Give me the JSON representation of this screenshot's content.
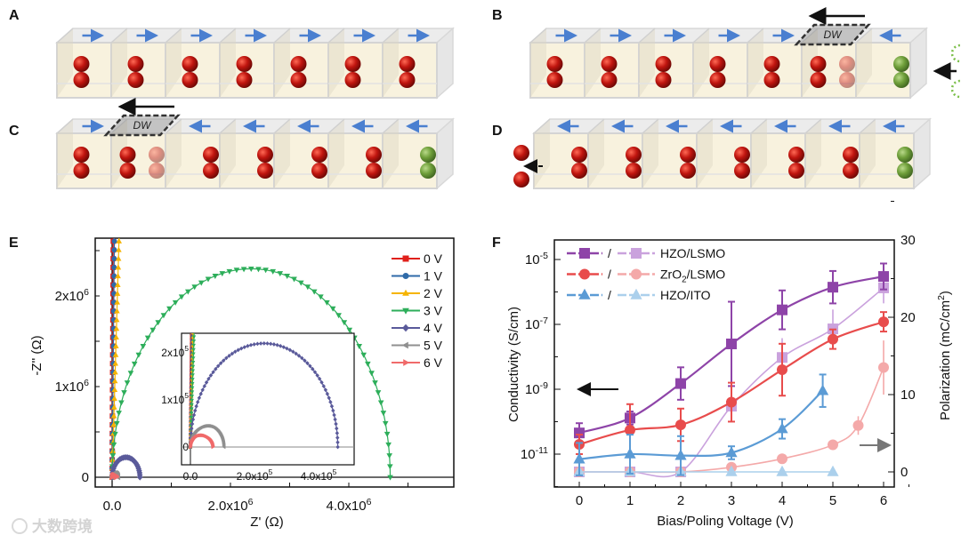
{
  "panels": {
    "a": "A",
    "b": "B",
    "c": "C",
    "d": "D",
    "e": "E",
    "f": "F"
  },
  "diagram": {
    "dw_label": "DW",
    "rows": [
      {
        "id": "A",
        "arrows": [
          "R",
          "R",
          "R",
          "R",
          "R",
          "R",
          "R"
        ],
        "spheres": [
          "cR",
          "cR",
          "cR",
          "cR",
          "cR",
          "cR",
          "cR"
        ]
      },
      {
        "id": "B",
        "arrows": [
          "R",
          "R",
          "R",
          "R",
          "R",
          "DW",
          "L"
        ],
        "spheres": [
          "cR",
          "cR",
          "cR",
          "cR",
          "cR",
          "lR+rF",
          "rG"
        ],
        "extra": "vacancy-in"
      },
      {
        "id": "C",
        "arrows": [
          "R",
          "DW",
          "L",
          "L",
          "L",
          "L",
          "L"
        ],
        "spheres": [
          "cR",
          "lR+rF",
          "rR",
          "rR",
          "rR",
          "rR",
          "rG"
        ]
      },
      {
        "id": "D",
        "arrows": [
          "L",
          "L",
          "L",
          "L",
          "L",
          "L",
          "L"
        ],
        "spheres": [
          "rR",
          "rR",
          "rR",
          "rR",
          "rR",
          "rR",
          "rG"
        ],
        "extra": "ion-out"
      }
    ],
    "colors": {
      "red": "#c0150f",
      "green": "#6f9f3a",
      "arrow": "#4a7fd0"
    }
  },
  "chart_data": [
    {
      "id": "E",
      "type": "scatter",
      "xlabel": "Z' (Ω)",
      "ylabel": "-Z'' (Ω)",
      "xlim": [
        -280000.0,
        5800000.0
      ],
      "ylim": [
        -100000.0,
        2600000.0
      ],
      "xticks": [
        {
          "v": 0,
          "base": "0.0",
          "exp": ""
        },
        {
          "v": 2000000.0,
          "base": "2.0x10",
          "exp": "6"
        },
        {
          "v": 4000000.0,
          "base": "4.0x10",
          "exp": "6"
        }
      ],
      "yticks": [
        {
          "v": 0,
          "base": "0",
          "exp": ""
        },
        {
          "v": 1000000.0,
          "base": "1x10",
          "exp": "6"
        },
        {
          "v": 2000000.0,
          "base": "2x10",
          "exp": "6"
        }
      ],
      "series": [
        {
          "name": "0 V",
          "color": "#e0201b",
          "marker": "square",
          "kind": "line",
          "x_top": 20000.0,
          "zmax": 0,
          "peak": 0,
          "inset_x_top": 5000.0
        },
        {
          "name": "1 V",
          "color": "#2f6aa8",
          "marker": "circle",
          "kind": "line",
          "x_top": 40000.0,
          "zmax": 0,
          "peak": 0,
          "inset_x_top": 7000.0
        },
        {
          "name": "2 V",
          "color": "#f5b400",
          "marker": "tri-up",
          "kind": "line",
          "x_top": 120000.0,
          "zmax": 0,
          "peak": 0,
          "inset_x_top": 9000.0
        },
        {
          "name": "3 V",
          "color": "#2dae5a",
          "marker": "tri-down",
          "kind": "arc",
          "zmax": 4700000.0,
          "peak": 2300000.0,
          "inset_x_top": 13000.0
        },
        {
          "name": "4 V",
          "color": "#5a5a9a",
          "marker": "diamond",
          "kind": "arc",
          "zmax": 470000.0,
          "peak": 220000.0,
          "inset_zmax": 460000.0,
          "inset_peak": 220000.0
        },
        {
          "name": "5 V",
          "color": "#8f8f8f",
          "marker": "tri-left",
          "kind": "arc",
          "zmax": 100000.0,
          "peak": 45000.0,
          "inset_zmax": 105000.0,
          "inset_peak": 45000.0
        },
        {
          "name": "6 V",
          "color": "#f06a6a",
          "marker": "tri-right",
          "kind": "arc",
          "zmax": 70000.0,
          "peak": 25000.0,
          "inset_zmax": 70000.0,
          "inset_peak": 25000.0
        }
      ],
      "inset": {
        "xticks": [
          {
            "v": 0,
            "base": "0.0",
            "exp": ""
          },
          {
            "v": 200000.0,
            "base": "2.0x10",
            "exp": "5"
          },
          {
            "v": 400000.0,
            "base": "4.0x10",
            "exp": "5"
          }
        ],
        "yticks": [
          {
            "v": 0,
            "base": "0",
            "exp": ""
          },
          {
            "v": 100000.0,
            "base": "1x10",
            "exp": "5"
          },
          {
            "v": 200000.0,
            "base": "2x10",
            "exp": "5"
          }
        ]
      }
    },
    {
      "id": "F",
      "type": "line",
      "xlabel": "Bias/Poling Voltage (V)",
      "ylabel": "Conductivity (S/cm)",
      "y2label": "Polarization (mC/cm²)",
      "y2label_base": "Polarization (mC/cm",
      "y2label_sup": "2",
      "y2label_end": ")",
      "xlim": [
        -0.5,
        6.2
      ],
      "ylim_log10": [
        -12,
        -4.4
      ],
      "y2lim": [
        -2,
        30
      ],
      "xticks": [
        "0",
        "1",
        "2",
        "3",
        "4",
        "5",
        "6"
      ],
      "yticks": [
        {
          "exp": "-5",
          "log": -5
        },
        {
          "exp": "-7",
          "log": -7
        },
        {
          "exp": "-9",
          "log": -9
        },
        {
          "exp": "-11",
          "log": -11
        }
      ],
      "y2ticks": [
        "0",
        "10",
        "20",
        "30"
      ],
      "legend_sep": "/",
      "series": [
        {
          "name": "HZO/LSMO",
          "name_parts": [
            "HZO/LSMO"
          ],
          "marker": "square",
          "dark": "#8e44a8",
          "light": "#caa2dd",
          "conductivity": {
            "x": [
              0,
              1,
              2,
              3,
              4,
              5,
              6
            ],
            "y": [
              4.5e-11,
              1.3e-10,
              1.5e-09,
              2.5e-08,
              2.8e-07,
              1.4e-06,
              3e-06
            ],
            "err_log": [
              0.3,
              0.2,
              0.5,
              1.3,
              0.6,
              0.5,
              0.4
            ]
          },
          "polarization": {
            "x": [
              0,
              1,
              2,
              3,
              4,
              5,
              6
            ],
            "y": [
              0,
              0,
              0,
              8.5,
              14.8,
              18.5,
              23.8
            ],
            "err": [
              0,
              0,
              0,
              1,
              2.5,
              2.5,
              2
            ]
          }
        },
        {
          "name": "ZrO2/LSMO",
          "name_parts": [
            "ZrO",
            "2",
            "/LSMO"
          ],
          "marker": "circle",
          "dark": "#e84c4c",
          "light": "#f4a9a9",
          "conductivity": {
            "x": [
              0,
              1,
              2,
              3,
              4,
              5,
              6
            ],
            "y": [
              2e-11,
              5.5e-11,
              8e-11,
              4e-10,
              4e-09,
              3.5e-08,
              1.2e-07
            ],
            "err_log": [
              0.3,
              0.8,
              0.5,
              0.6,
              0.8,
              0.3,
              0.3
            ]
          },
          "polarization": {
            "x": [
              0,
              1,
              2,
              3,
              4,
              5,
              5.5,
              6
            ],
            "y": [
              0,
              0,
              0,
              0.6,
              1.7,
              3.5,
              6,
              13.5
            ],
            "err": [
              0,
              0,
              0,
              0,
              0,
              0,
              1.2,
              3.5
            ]
          }
        },
        {
          "name": "HZO/ITO",
          "name_parts": [
            "HZO/ITO"
          ],
          "marker": "tri-up",
          "dark": "#5b9bd5",
          "light": "#abd0ec",
          "conductivity": {
            "x": [
              0,
              1,
              2,
              3,
              4,
              4.8
            ],
            "y": [
              7e-12,
              1e-11,
              9e-12,
              1.1e-11,
              6e-11,
              9e-10
            ],
            "err_log": [
              0.5,
              0.6,
              0.6,
              0.2,
              0.3,
              0.5
            ]
          },
          "polarization": {
            "x": [
              0,
              1,
              2,
              3,
              4,
              5
            ],
            "y": [
              0,
              0,
              0,
              0,
              0,
              0
            ],
            "err": [
              0,
              0,
              0,
              0,
              0,
              0
            ]
          }
        }
      ]
    }
  ],
  "watermark": "大数跨境"
}
